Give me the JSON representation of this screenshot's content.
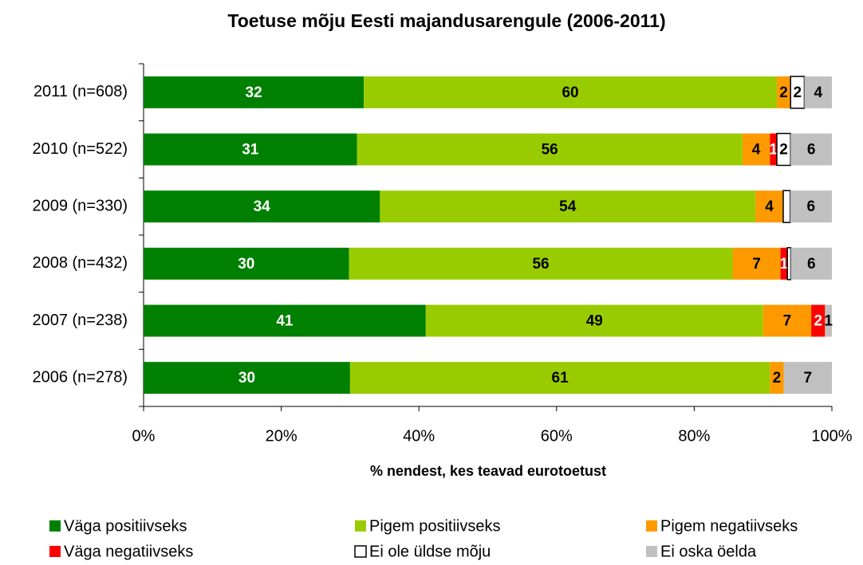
{
  "chart_data": {
    "type": "bar",
    "orientation": "horizontal",
    "stacked": "percent",
    "title": "Toetuse mõju Eesti majandusarengule (2006-2011)",
    "x_label": "% nendest, kes teavad eurotoetust",
    "categories": [
      "2011 (n=608)",
      "2010 (n=522)",
      "2009 (n=330)",
      "2008 (n=432)",
      "2007 (n=238)",
      "2006 (n=278)"
    ],
    "series": [
      {
        "name": "Väga positiivseks",
        "color": "#008000",
        "label_color": "#ffffff",
        "values": [
          32,
          31,
          34,
          30,
          41,
          30
        ]
      },
      {
        "name": "Pigem positiivseks",
        "color": "#99cc00",
        "label_color": "#000000",
        "values": [
          60,
          56,
          54,
          56,
          49,
          61
        ]
      },
      {
        "name": "Pigem negatiivseks",
        "color": "#ff9900",
        "label_color": "#000000",
        "values": [
          2,
          4,
          4,
          7,
          7,
          2
        ]
      },
      {
        "name": "Väga negatiivseks",
        "color": "#ff0000",
        "label_color": "#ffffff",
        "values": [
          null,
          1,
          null,
          1,
          2,
          null
        ]
      },
      {
        "name": "Ei ole üldse mõju",
        "color": "#ffffff",
        "label_color": "#000000",
        "values": [
          2,
          2,
          1,
          0.5,
          null,
          null
        ],
        "value_labels": [
          "2",
          "2",
          null,
          null,
          null,
          null
        ]
      },
      {
        "name": "Ei oska öelda",
        "color": "#c0c0c0",
        "label_color": "#000000",
        "values": [
          4,
          6,
          6,
          6,
          1,
          7
        ]
      }
    ],
    "xlim": [
      0,
      100
    ],
    "xticks": [
      {
        "value": 0,
        "label": "0%"
      },
      {
        "value": 20,
        "label": "20%"
      },
      {
        "value": 40,
        "label": "40%"
      },
      {
        "value": 60,
        "label": "60%"
      },
      {
        "value": 80,
        "label": "80%"
      },
      {
        "value": 100,
        "label": "100%"
      }
    ],
    "legend": "bottom"
  }
}
